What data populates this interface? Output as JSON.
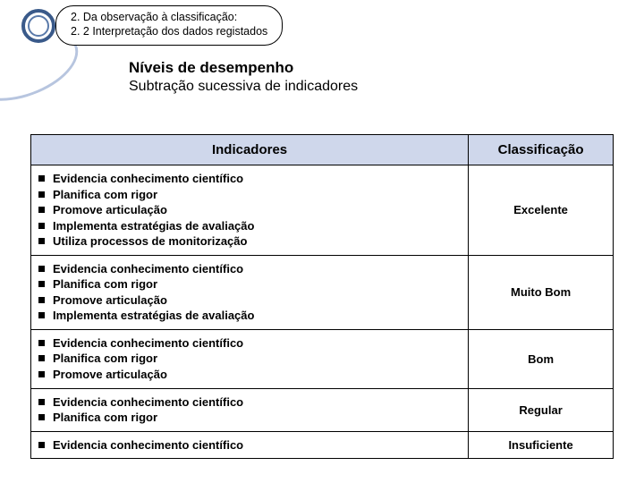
{
  "header": {
    "line1": "2. Da observação à classificação:",
    "line2": "2. 2 Interpretação dos dados registados"
  },
  "title": {
    "main": "Níveis de desempenho",
    "sub": "Subtração sucessiva de indicadores"
  },
  "columns": {
    "c1": "Indicadores",
    "c2": "Classificação"
  },
  "rows": [
    {
      "items": [
        "Evidencia conhecimento científico",
        "Planifica com rigor",
        "Promove articulação",
        "Implementa estratégias de avaliação",
        "Utiliza processos de monitorização"
      ],
      "cls": "Excelente"
    },
    {
      "items": [
        "Evidencia conhecimento científico",
        "Planifica com rigor",
        "Promove articulação",
        "Implementa estratégias de avaliação"
      ],
      "cls": "Muito Bom"
    },
    {
      "items": [
        "Evidencia conhecimento científico",
        "Planifica com rigor",
        "Promove articulação"
      ],
      "cls": "Bom"
    },
    {
      "items": [
        "Evidencia conhecimento científico",
        "Planifica com rigor"
      ],
      "cls": "Regular"
    },
    {
      "items": [
        "Evidencia conhecimento científico"
      ],
      "cls": "Insuficiente"
    }
  ]
}
